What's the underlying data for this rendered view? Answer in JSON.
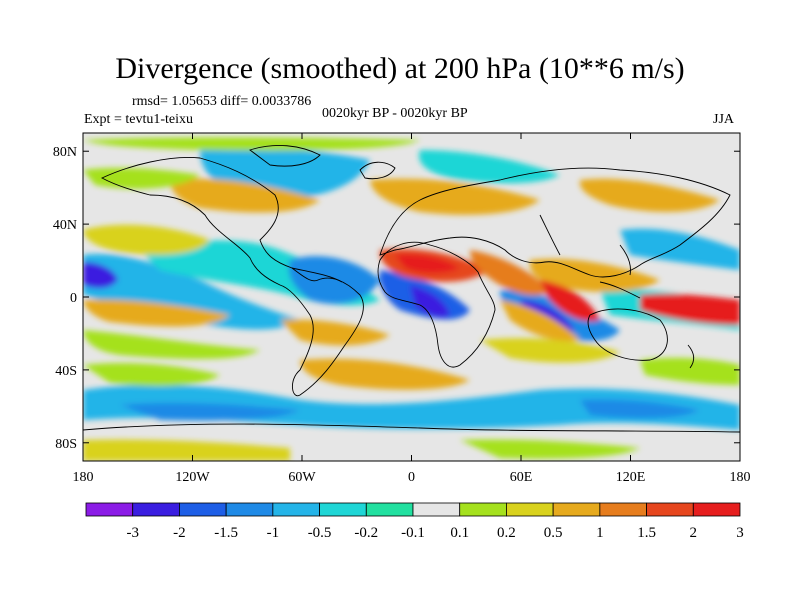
{
  "header": {
    "title": "Divergence (smoothed) at 200 hPa (10**6 m/s)",
    "stats": "rmsd= 1.05653 diff= 0.0033786",
    "experiment": "Expt = tevtu1-teixu",
    "period": "0020kyr BP - 0020kyr BP",
    "season": "JJA"
  },
  "axes": {
    "lat_labels": [
      "80N",
      "40N",
      "0",
      "40S",
      "80S"
    ],
    "lat_values": [
      80,
      40,
      0,
      -40,
      -80
    ],
    "lon_labels": [
      "180",
      "120W",
      "60W",
      "0",
      "60E",
      "120E",
      "180"
    ],
    "lon_values": [
      -180,
      -120,
      -60,
      0,
      60,
      120,
      180
    ],
    "lat_range": [
      -90,
      90
    ],
    "lon_range": [
      -180,
      180
    ]
  },
  "colorbar": {
    "labels": [
      "-3",
      "-2",
      "-1.5",
      "-1",
      "-0.5",
      "-0.2",
      "-0.1",
      "0.1",
      "0.2",
      "0.5",
      "1",
      "1.5",
      "2",
      "3"
    ],
    "colors": [
      "#8b1ce6",
      "#3a1ee0",
      "#1e5ee6",
      "#1f8ae6",
      "#24b4e8",
      "#1fd6d6",
      "#22e0a0",
      "#e6e6e6",
      "#a5e11e",
      "#d9d21e",
      "#e6aa1e",
      "#e67d1e",
      "#e6461e",
      "#e61e1e"
    ]
  },
  "colors": {
    "land_outline": "#000000",
    "background": "#ffffff"
  }
}
